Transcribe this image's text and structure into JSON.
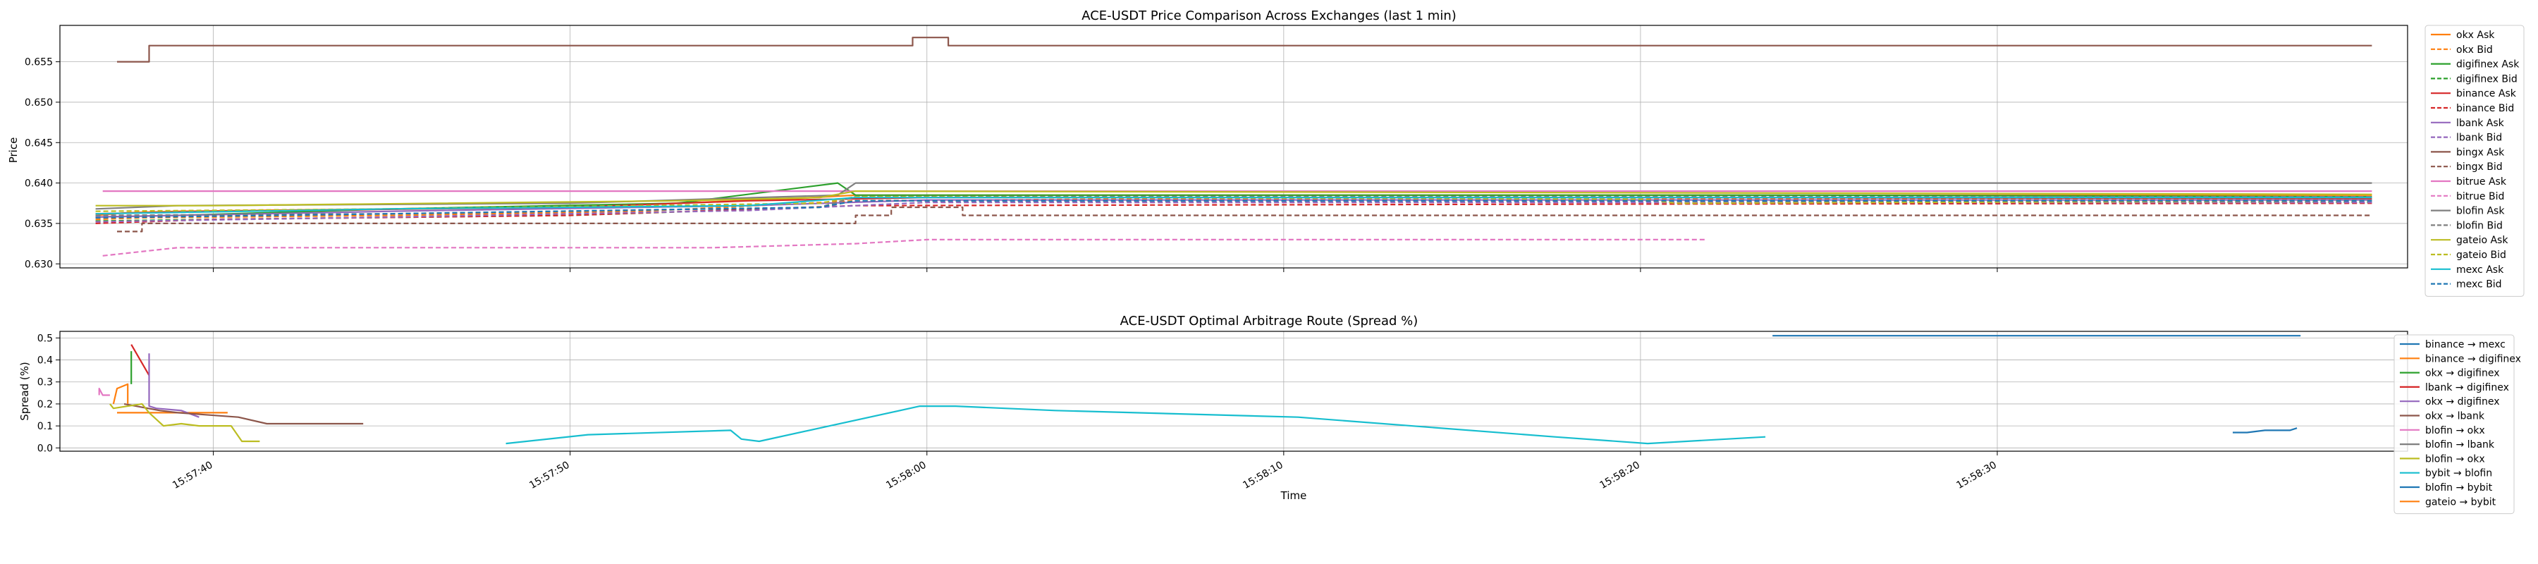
{
  "chart_data": [
    {
      "type": "line",
      "title": "ACE-USDT Price Comparison Across Exchanges (last 1 min)",
      "xlabel": "",
      "ylabel": "Price",
      "ylim": [
        0.6295,
        0.6595
      ],
      "xlim": [
        "15:57:35.7",
        "15:58:41.5"
      ],
      "yticks": [
        "0.630",
        "0.635",
        "0.640",
        "0.645",
        "0.650",
        "0.655"
      ],
      "grid": true,
      "legend_position": "right",
      "series": [
        {
          "name": "okx Ask",
          "color": "#ff7f0e",
          "dash": "solid",
          "points": [
            [
              "15:57:36.7",
              0.636
            ],
            [
              "15:57:37.5",
              0.6363
            ],
            [
              "15:57:39.0",
              0.6365
            ],
            [
              "15:57:45.0",
              0.6368
            ],
            [
              "15:57:51.0",
              0.6372
            ],
            [
              "15:57:56.0",
              0.638
            ],
            [
              "15:57:58.0",
              0.6385
            ],
            [
              "15:58:02.0",
              0.6385
            ],
            [
              "15:58:20.0",
              0.6385
            ],
            [
              "15:58:40.5",
              0.6385
            ]
          ]
        },
        {
          "name": "okx Bid",
          "color": "#ff7f0e",
          "dash": "dashed",
          "points": [
            [
              "15:57:36.7",
              0.6355
            ],
            [
              "15:57:38.0",
              0.6357
            ],
            [
              "15:57:45.0",
              0.636
            ],
            [
              "15:57:52.0",
              0.6365
            ],
            [
              "15:57:58.0",
              0.6378
            ],
            [
              "15:58:05.0",
              0.638
            ],
            [
              "15:58:20.0",
              0.638
            ],
            [
              "15:58:40.5",
              0.638
            ]
          ]
        },
        {
          "name": "digifinex Ask",
          "color": "#2ca02c",
          "dash": "solid",
          "points": [
            [
              "15:57:36.7",
              0.6358
            ],
            [
              "15:57:39.0",
              0.636
            ],
            [
              "15:57:45.0",
              0.6368
            ],
            [
              "15:57:53.0",
              0.6375
            ],
            [
              "15:57:57.5",
              0.64
            ],
            [
              "15:57:58.0",
              0.6385
            ],
            [
              "15:58:10.0",
              0.6385
            ],
            [
              "15:58:25.0",
              0.6385
            ],
            [
              "15:58:40.5",
              0.6383
            ]
          ]
        },
        {
          "name": "digifinex Bid",
          "color": "#2ca02c",
          "dash": "dashed",
          "points": [
            [
              "15:57:36.7",
              0.6353
            ],
            [
              "15:57:40.0",
              0.6355
            ],
            [
              "15:57:50.0",
              0.636
            ],
            [
              "15:57:57.0",
              0.637
            ],
            [
              "15:57:58.0",
              0.6378
            ],
            [
              "15:58:15.0",
              0.6378
            ],
            [
              "15:58:40.5",
              0.6376
            ]
          ]
        },
        {
          "name": "binance Ask",
          "color": "#d62728",
          "dash": "solid",
          "points": [
            [
              "15:57:36.7",
              0.6362
            ],
            [
              "15:57:40.0",
              0.6365
            ],
            [
              "15:57:50.0",
              0.637
            ],
            [
              "15:57:55.0",
              0.6378
            ],
            [
              "15:58:00.0",
              0.6382
            ],
            [
              "15:58:20.0",
              0.6382
            ],
            [
              "15:58:40.5",
              0.6381
            ]
          ]
        },
        {
          "name": "binance Bid",
          "color": "#d62728",
          "dash": "dashed",
          "points": [
            [
              "15:57:36.7",
              0.635
            ],
            [
              "15:57:40.0",
              0.6355
            ],
            [
              "15:57:50.0",
              0.636
            ],
            [
              "15:57:58.0",
              0.6372
            ],
            [
              "15:58:20.0",
              0.6374
            ],
            [
              "15:58:40.5",
              0.6375
            ]
          ]
        },
        {
          "name": "lbank Ask",
          "color": "#9467bd",
          "dash": "solid",
          "points": [
            [
              "15:57:36.7",
              0.6358
            ],
            [
              "15:57:45.0",
              0.6365
            ],
            [
              "15:57:55.0",
              0.6372
            ],
            [
              "15:58:00.0",
              0.6379
            ],
            [
              "15:58:40.5",
              0.6379
            ]
          ]
        },
        {
          "name": "lbank Bid",
          "color": "#9467bd",
          "dash": "dashed",
          "points": [
            [
              "15:57:36.7",
              0.6352
            ],
            [
              "15:57:45.0",
              0.6358
            ],
            [
              "15:57:55.0",
              0.6366
            ],
            [
              "15:58:00.0",
              0.6376
            ],
            [
              "15:58:40.5",
              0.6376
            ]
          ]
        },
        {
          "name": "bingx Ask",
          "color": "#8c564b",
          "dash": "solid",
          "points": [
            [
              "15:57:37.3",
              0.655
            ],
            [
              "15:57:38.2",
              0.655
            ],
            [
              "15:57:38.2",
              0.657
            ],
            [
              "15:57:59.6",
              0.657
            ],
            [
              "15:57:59.6",
              0.658
            ],
            [
              "15:58:00.6",
              0.658
            ],
            [
              "15:58:00.6",
              0.657
            ],
            [
              "15:58:40.5",
              0.657
            ]
          ]
        },
        {
          "name": "bingx Bid",
          "color": "#8c564b",
          "dash": "dashed",
          "points": [
            [
              "15:57:37.3",
              0.634
            ],
            [
              "15:57:38.0",
              0.634
            ],
            [
              "15:57:38.0",
              0.635
            ],
            [
              "15:57:58.0",
              0.635
            ],
            [
              "15:57:58.0",
              0.636
            ],
            [
              "15:57:59.0",
              0.636
            ],
            [
              "15:57:59.0",
              0.637
            ],
            [
              "15:58:01.0",
              0.637
            ],
            [
              "15:58:01.0",
              0.636
            ],
            [
              "15:58:40.5",
              0.636
            ]
          ]
        },
        {
          "name": "bitrue Ask",
          "color": "#e377c2",
          "dash": "solid",
          "points": [
            [
              "15:57:36.9",
              0.639
            ],
            [
              "15:57:55.0",
              0.639
            ],
            [
              "15:58:05.0",
              0.639
            ],
            [
              "15:58:20.0",
              0.639
            ],
            [
              "15:58:40.5",
              0.639
            ]
          ]
        },
        {
          "name": "bitrue Bid",
          "color": "#e377c2",
          "dash": "dashed",
          "points": [
            [
              "15:57:36.9",
              0.631
            ],
            [
              "15:57:39.0",
              0.632
            ],
            [
              "15:57:54.0",
              0.632
            ],
            [
              "15:57:58.0",
              0.6325
            ],
            [
              "15:58:00.0",
              0.633
            ],
            [
              "15:58:21.8",
              0.633
            ]
          ]
        },
        {
          "name": "blofin Ask",
          "color": "#7f7f7f",
          "dash": "solid",
          "points": [
            [
              "15:57:36.7",
              0.6368
            ],
            [
              "15:57:39.0",
              0.6372
            ],
            [
              "15:57:50.0",
              0.6375
            ],
            [
              "15:57:57.5",
              0.6385
            ],
            [
              "15:57:58.0",
              0.64
            ],
            [
              "15:58:02.0",
              0.64
            ],
            [
              "15:58:40.5",
              0.64
            ]
          ]
        },
        {
          "name": "blofin Bid",
          "color": "#7f7f7f",
          "dash": "dashed",
          "points": [
            [
              "15:57:36.7",
              0.636
            ],
            [
              "15:57:45.0",
              0.6362
            ],
            [
              "15:57:57.0",
              0.637
            ],
            [
              "15:57:58.0",
              0.6383
            ],
            [
              "15:58:40.5",
              0.6383
            ]
          ]
        },
        {
          "name": "gateio Ask",
          "color": "#bcbd22",
          "dash": "solid",
          "points": [
            [
              "15:57:36.7",
              0.6372
            ],
            [
              "15:57:40.0",
              0.6372
            ],
            [
              "15:57:53.0",
              0.6378
            ],
            [
              "15:57:57.0",
              0.6382
            ],
            [
              "15:57:58.0",
              0.639
            ],
            [
              "15:58:20.0",
              0.6388
            ],
            [
              "15:58:40.5",
              0.6386
            ]
          ]
        },
        {
          "name": "gateio Bid",
          "color": "#bcbd22",
          "dash": "dashed",
          "points": [
            [
              "15:57:36.7",
              0.6365
            ],
            [
              "15:57:45.0",
              0.6368
            ],
            [
              "15:57:57.0",
              0.6375
            ],
            [
              "15:57:58.0",
              0.6383
            ],
            [
              "15:58:20.0",
              0.638
            ],
            [
              "15:58:21.0",
              0.6375
            ],
            [
              "15:58:40.5",
              0.6378
            ]
          ]
        },
        {
          "name": "mexc Ask",
          "color": "#17becf",
          "dash": "solid",
          "points": [
            [
              "15:57:36.7",
              0.6362
            ],
            [
              "15:57:45.0",
              0.6368
            ],
            [
              "15:57:55.0",
              0.6372
            ],
            [
              "15:57:58.0",
              0.6382
            ],
            [
              "15:58:20.0",
              0.6382
            ],
            [
              "15:58:40.5",
              0.6382
            ]
          ]
        },
        {
          "name": "mexc Bid",
          "color": "#1f77b4",
          "dash": "dashed",
          "points": [
            [
              "15:57:36.7",
              0.6357
            ],
            [
              "15:57:45.0",
              0.6362
            ],
            [
              "15:57:57.0",
              0.637
            ],
            [
              "15:57:58.0",
              0.6378
            ],
            [
              "15:58:40.5",
              0.6378
            ]
          ]
        }
      ]
    },
    {
      "type": "line",
      "title": "ACE-USDT Optimal Arbitrage Route (Spread %)",
      "xlabel": "Time",
      "ylabel": "Spread (%)",
      "ylim": [
        -0.015,
        0.53
      ],
      "xlim": [
        "15:57:35.7",
        "15:58:41.5"
      ],
      "yticks": [
        "0.0",
        "0.1",
        "0.2",
        "0.3",
        "0.4",
        "0.5"
      ],
      "xticks": [
        "15:57:40",
        "15:57:50",
        "15:58:00",
        "15:58:10",
        "15:58:20",
        "15:58:30"
      ],
      "grid": true,
      "legend_position": "right",
      "series": [
        {
          "name": "binance → mexc",
          "color": "#1f77b4",
          "points": [
            [
              "15:58:23.7",
              0.51
            ],
            [
              "15:58:36.0",
              0.51
            ],
            [
              "15:58:38.5",
              0.51
            ]
          ]
        },
        {
          "name": "binance → digifinex",
          "color": "#ff7f0e",
          "points": [
            [
              "15:57:37.3",
              0.16
            ],
            [
              "15:57:40.4",
              0.16
            ]
          ]
        },
        {
          "name": "okx → digifinex",
          "color": "#2ca02c",
          "points": [
            [
              "15:57:37.7",
              0.29
            ],
            [
              "15:57:37.7",
              0.44
            ]
          ]
        },
        {
          "name": "lbank → digifinex",
          "color": "#d62728",
          "points": [
            [
              "15:57:37.7",
              0.47
            ],
            [
              "15:57:38.2",
              0.33
            ]
          ]
        },
        {
          "name": "okx → digifinex",
          "color": "#9467bd",
          "points": [
            [
              "15:57:38.2",
              0.43
            ],
            [
              "15:57:38.2",
              0.19
            ],
            [
              "15:57:38.4",
              0.18
            ],
            [
              "15:57:39.1",
              0.17
            ],
            [
              "15:57:39.6",
              0.14
            ]
          ]
        },
        {
          "name": "okx → lbank",
          "color": "#8c564b",
          "points": [
            [
              "15:57:37.5",
              0.2
            ],
            [
              "15:57:38.5",
              0.17
            ],
            [
              "15:57:39.0",
              0.16
            ],
            [
              "15:57:40.7",
              0.14
            ],
            [
              "15:57:41.5",
              0.11
            ],
            [
              "15:57:44.2",
              0.11
            ]
          ]
        },
        {
          "name": "blofin → okx",
          "color": "#e377c2",
          "points": [
            [
              "15:57:36.8",
              0.24
            ],
            [
              "15:57:36.8",
              0.27
            ],
            [
              "15:57:36.9",
              0.24
            ],
            [
              "15:57:37.1",
              0.24
            ]
          ]
        },
        {
          "name": "blofin → lbank",
          "color": "#7f7f7f",
          "points": []
        },
        {
          "name": "blofin → okx",
          "color": "#bcbd22",
          "points": [
            [
              "15:57:37.1",
              0.2
            ],
            [
              "15:57:37.2",
              0.18
            ],
            [
              "15:57:38.0",
              0.2
            ],
            [
              "15:57:38.2",
              0.16
            ],
            [
              "15:57:38.6",
              0.1
            ],
            [
              "15:57:39.1",
              0.11
            ],
            [
              "15:57:39.6",
              0.1
            ],
            [
              "15:57:40.5",
              0.1
            ],
            [
              "15:57:40.8",
              0.03
            ],
            [
              "15:57:41.3",
              0.03
            ]
          ]
        },
        {
          "name": "bybit → blofin",
          "color": "#17becf",
          "points": [
            [
              "15:57:48.2",
              0.02
            ],
            [
              "15:57:50.5",
              0.06
            ],
            [
              "15:57:54.5",
              0.08
            ],
            [
              "15:57:54.8",
              0.04
            ],
            [
              "15:57:55.3",
              0.03
            ],
            [
              "15:57:59.8",
              0.19
            ],
            [
              "15:58:00.8",
              0.19
            ],
            [
              "15:58:03.6",
              0.17
            ],
            [
              "15:58:10.4",
              0.14
            ],
            [
              "15:58:17.6",
              0.05
            ],
            [
              "15:58:20.2",
              0.02
            ],
            [
              "15:58:23.5",
              0.05
            ]
          ]
        },
        {
          "name": "blofin → bybit",
          "color": "#1f77b4",
          "points": [
            [
              "15:58:36.6",
              0.07
            ],
            [
              "15:58:37.0",
              0.07
            ],
            [
              "15:58:37.5",
              0.08
            ],
            [
              "15:58:38.2",
              0.08
            ],
            [
              "15:58:38.4",
              0.09
            ]
          ]
        },
        {
          "name": "gateio → bybit",
          "color": "#ff7f0e",
          "points": [
            [
              "15:57:37.2",
              0.2
            ],
            [
              "15:57:37.3",
              0.27
            ],
            [
              "15:57:37.6",
              0.29
            ],
            [
              "15:57:37.6",
              0.2
            ]
          ]
        }
      ]
    }
  ]
}
